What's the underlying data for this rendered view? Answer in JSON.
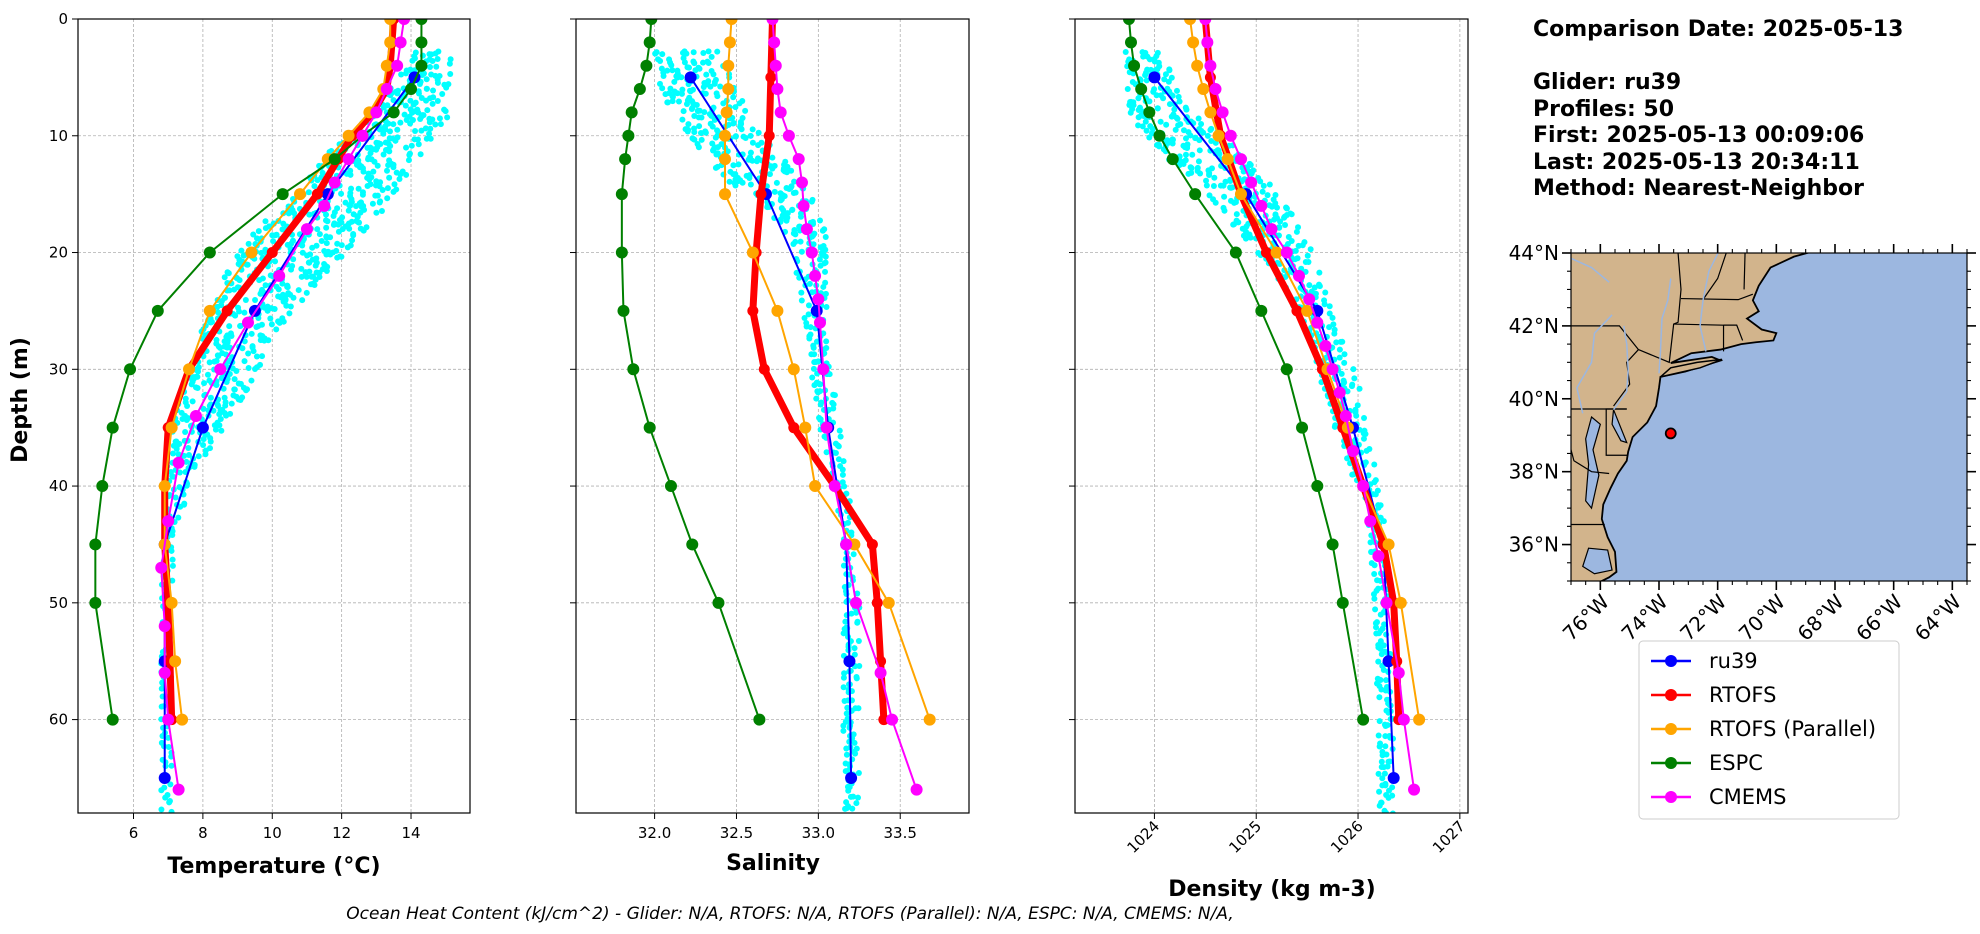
{
  "chart_data": [
    {
      "type": "line",
      "xlabel": "Temperature (°C)",
      "ylabel": "Depth (m)",
      "xlim": [
        4.4,
        15.7
      ],
      "ylim": [
        68,
        0
      ],
      "xticks": [
        6,
        8,
        10,
        12,
        14
      ],
      "xtick_labels": [
        "6",
        "8",
        "10",
        "12",
        "14"
      ],
      "yticks": [
        0,
        10,
        20,
        30,
        40,
        50,
        60
      ],
      "ytick_labels": [
        "0",
        "10",
        "20",
        "30",
        "40",
        "50",
        "60"
      ],
      "grid": true,
      "glider_cloud": {
        "color": "#00ffff",
        "envelope_left": [
          [
            14.0,
            3
          ],
          [
            13.0,
            8
          ],
          [
            12.0,
            10
          ],
          [
            11.0,
            14
          ],
          [
            9.5,
            18
          ],
          [
            8.6,
            22
          ],
          [
            7.8,
            28
          ],
          [
            7.2,
            33
          ],
          [
            6.9,
            40
          ],
          [
            6.8,
            50
          ],
          [
            6.8,
            60
          ],
          [
            6.8,
            68
          ]
        ],
        "envelope_right": [
          [
            15.2,
            3
          ],
          [
            15.2,
            8
          ],
          [
            14.0,
            13
          ],
          [
            12.8,
            18
          ],
          [
            11.5,
            22
          ],
          [
            10.0,
            27
          ],
          [
            9.3,
            32
          ],
          [
            8.4,
            36
          ],
          [
            7.6,
            40
          ],
          [
            7.2,
            45
          ],
          [
            7.1,
            55
          ],
          [
            7.1,
            68
          ]
        ]
      },
      "series": [
        {
          "name": "ru39",
          "color": "#0000ff",
          "lw": 2,
          "y": [
            5,
            15,
            25,
            35,
            45,
            55,
            65
          ],
          "x": [
            14.1,
            11.6,
            9.5,
            8.0,
            6.9,
            6.9,
            6.9
          ]
        },
        {
          "name": "RTOFS",
          "color": "#ff0000",
          "lw": 7,
          "y": [
            0,
            2,
            4,
            6,
            8,
            10,
            12,
            15,
            20,
            25,
            30,
            35,
            40,
            45,
            50,
            55,
            60
          ],
          "x": [
            13.5,
            13.45,
            13.4,
            13.3,
            12.9,
            12.3,
            11.9,
            11.3,
            10.0,
            8.7,
            7.6,
            7.0,
            6.9,
            6.9,
            7.0,
            7.05,
            7.1
          ]
        },
        {
          "name": "RTOFS (Parallel)",
          "color": "#ffa500",
          "lw": 2,
          "y": [
            0,
            2,
            4,
            6,
            8,
            10,
            12,
            15,
            20,
            25,
            30,
            35,
            40,
            45,
            50,
            55,
            60
          ],
          "x": [
            13.4,
            13.4,
            13.3,
            13.2,
            12.8,
            12.2,
            11.6,
            10.8,
            9.4,
            8.2,
            7.6,
            7.1,
            6.9,
            6.9,
            7.1,
            7.2,
            7.4
          ]
        },
        {
          "name": "ESPC",
          "color": "#008000",
          "lw": 2,
          "y": [
            0,
            2,
            4,
            6,
            8,
            10,
            12,
            15,
            20,
            25,
            30,
            35,
            40,
            45,
            50,
            60
          ],
          "x": [
            14.3,
            14.3,
            14.3,
            14.0,
            13.5,
            12.6,
            11.8,
            10.3,
            8.2,
            6.7,
            5.9,
            5.4,
            5.1,
            4.9,
            4.9,
            5.4
          ]
        },
        {
          "name": "CMEMS",
          "color": "#ff00ff",
          "lw": 2,
          "y": [
            0,
            2,
            4,
            6,
            8,
            10,
            12,
            14,
            16,
            18,
            22,
            26,
            30,
            34,
            38,
            43,
            47,
            52,
            56,
            60,
            66
          ],
          "x": [
            13.8,
            13.7,
            13.6,
            13.3,
            13.0,
            12.6,
            12.2,
            11.8,
            11.5,
            11.0,
            10.2,
            9.3,
            8.5,
            7.8,
            7.3,
            7.0,
            6.8,
            6.9,
            6.9,
            7.0,
            7.3
          ]
        }
      ]
    },
    {
      "type": "line",
      "xlabel": "Salinity",
      "ylim": [
        68,
        0
      ],
      "xlim": [
        31.52,
        33.92
      ],
      "xticks": [
        32.0,
        32.5,
        33.0,
        33.5
      ],
      "xtick_labels": [
        "32.0",
        "32.5",
        "33.0",
        "33.5"
      ],
      "grid": true,
      "glider_cloud": {
        "color": "#00ffff",
        "envelope_left": [
          [
            32.0,
            3
          ],
          [
            32.05,
            7
          ],
          [
            32.2,
            10
          ],
          [
            32.45,
            14
          ],
          [
            32.75,
            17
          ],
          [
            32.85,
            20
          ],
          [
            32.9,
            25
          ],
          [
            32.95,
            30
          ],
          [
            33.0,
            35
          ],
          [
            33.1,
            40
          ],
          [
            33.15,
            45
          ],
          [
            33.15,
            55
          ],
          [
            33.15,
            68
          ]
        ],
        "envelope_right": [
          [
            32.4,
            3
          ],
          [
            32.5,
            6
          ],
          [
            32.6,
            9
          ],
          [
            32.8,
            12
          ],
          [
            32.95,
            15
          ],
          [
            33.05,
            18
          ],
          [
            33.05,
            22
          ],
          [
            33.05,
            27
          ],
          [
            33.1,
            32
          ],
          [
            33.15,
            37
          ],
          [
            33.2,
            42
          ],
          [
            33.25,
            50
          ],
          [
            33.25,
            68
          ]
        ]
      },
      "series": [
        {
          "name": "ru39",
          "color": "#0000ff",
          "lw": 2,
          "y": [
            5,
            15,
            25,
            35,
            45,
            55,
            65
          ],
          "x": [
            32.22,
            32.68,
            32.99,
            33.06,
            33.17,
            33.19,
            33.2
          ]
        },
        {
          "name": "RTOFS",
          "color": "#ff0000",
          "lw": 7,
          "y": [
            0,
            5,
            10,
            15,
            20,
            25,
            30,
            35,
            40,
            45,
            50,
            55,
            60
          ],
          "x": [
            32.72,
            32.71,
            32.7,
            32.65,
            32.62,
            32.6,
            32.67,
            32.85,
            33.1,
            33.33,
            33.36,
            33.38,
            33.4
          ]
        },
        {
          "name": "RTOFS (Parallel)",
          "color": "#ffa500",
          "lw": 2,
          "y": [
            0,
            2,
            4,
            6,
            8,
            10,
            12,
            15,
            20,
            25,
            30,
            35,
            40,
            45,
            50,
            60
          ],
          "x": [
            32.47,
            32.46,
            32.45,
            32.45,
            32.44,
            32.43,
            32.43,
            32.43,
            32.6,
            32.75,
            32.85,
            32.92,
            32.98,
            33.22,
            33.43,
            33.68
          ]
        },
        {
          "name": "ESPC",
          "color": "#008000",
          "lw": 2,
          "y": [
            0,
            2,
            4,
            6,
            8,
            10,
            12,
            15,
            20,
            25,
            30,
            35,
            40,
            45,
            50,
            60
          ],
          "x": [
            31.98,
            31.97,
            31.95,
            31.91,
            31.86,
            31.84,
            31.82,
            31.8,
            31.8,
            31.81,
            31.87,
            31.97,
            32.1,
            32.23,
            32.39,
            32.64
          ]
        },
        {
          "name": "CMEMS",
          "color": "#ff00ff",
          "lw": 2,
          "y": [
            0,
            2,
            4,
            6,
            8,
            10,
            12,
            14,
            16,
            18,
            20,
            22,
            24,
            26,
            30,
            35,
            40,
            45,
            50,
            56,
            60,
            66
          ],
          "x": [
            32.72,
            32.73,
            32.74,
            32.75,
            32.77,
            32.82,
            32.88,
            32.9,
            32.91,
            32.93,
            32.96,
            32.98,
            33.0,
            33.01,
            33.03,
            33.05,
            33.1,
            33.17,
            33.23,
            33.38,
            33.45,
            33.6
          ]
        }
      ]
    },
    {
      "type": "line",
      "xlabel": "Density (kg m-3)",
      "ylim": [
        68,
        0
      ],
      "xlim": [
        1023.22,
        1027.08
      ],
      "xticks": [
        1024,
        1025,
        1026,
        1027
      ],
      "xtick_labels": [
        "1024",
        "1025",
        "1026",
        "1027"
      ],
      "grid": true,
      "glider_cloud": {
        "color": "#00ffff",
        "envelope_left": [
          [
            1023.7,
            3
          ],
          [
            1023.75,
            8
          ],
          [
            1024.0,
            11
          ],
          [
            1024.4,
            14
          ],
          [
            1024.8,
            18
          ],
          [
            1025.2,
            22
          ],
          [
            1025.5,
            27
          ],
          [
            1025.7,
            33
          ],
          [
            1025.9,
            38
          ],
          [
            1026.1,
            43
          ],
          [
            1026.15,
            50
          ],
          [
            1026.2,
            60
          ],
          [
            1026.2,
            68
          ]
        ],
        "envelope_right": [
          [
            1024.1,
            3
          ],
          [
            1024.3,
            7
          ],
          [
            1024.7,
            10
          ],
          [
            1025.0,
            13
          ],
          [
            1025.4,
            17
          ],
          [
            1025.6,
            21
          ],
          [
            1025.8,
            26
          ],
          [
            1026.0,
            31
          ],
          [
            1026.1,
            36
          ],
          [
            1026.25,
            42
          ],
          [
            1026.3,
            50
          ],
          [
            1026.35,
            60
          ],
          [
            1026.35,
            68
          ]
        ]
      },
      "series": [
        {
          "name": "ru39",
          "color": "#0000ff",
          "lw": 2,
          "y": [
            5,
            15,
            25,
            35,
            45,
            55,
            65
          ],
          "x": [
            1024.0,
            1024.9,
            1025.6,
            1025.95,
            1026.25,
            1026.3,
            1026.35
          ]
        },
        {
          "name": "RTOFS",
          "color": "#ff0000",
          "lw": 7,
          "y": [
            0,
            5,
            10,
            15,
            20,
            25,
            30,
            35,
            40,
            45,
            50,
            55,
            60
          ],
          "x": [
            1024.5,
            1024.55,
            1024.65,
            1024.85,
            1025.1,
            1025.4,
            1025.65,
            1025.85,
            1026.05,
            1026.25,
            1026.35,
            1026.38,
            1026.4
          ]
        },
        {
          "name": "RTOFS (Parallel)",
          "color": "#ffa500",
          "lw": 2,
          "y": [
            0,
            2,
            4,
            6,
            8,
            10,
            12,
            15,
            20,
            25,
            30,
            35,
            40,
            45,
            50,
            60
          ],
          "x": [
            1024.35,
            1024.38,
            1024.42,
            1024.48,
            1024.55,
            1024.63,
            1024.72,
            1024.85,
            1025.2,
            1025.5,
            1025.7,
            1025.9,
            1026.05,
            1026.3,
            1026.42,
            1026.6
          ]
        },
        {
          "name": "ESPC",
          "color": "#008000",
          "lw": 2,
          "y": [
            0,
            2,
            4,
            6,
            8,
            10,
            12,
            15,
            20,
            25,
            30,
            35,
            40,
            45,
            50,
            60
          ],
          "x": [
            1023.75,
            1023.77,
            1023.8,
            1023.87,
            1023.95,
            1024.05,
            1024.18,
            1024.4,
            1024.8,
            1025.05,
            1025.3,
            1025.45,
            1025.6,
            1025.75,
            1025.85,
            1026.05
          ]
        },
        {
          "name": "CMEMS",
          "color": "#ff00ff",
          "lw": 2,
          "y": [
            0,
            2,
            4,
            6,
            8,
            10,
            12,
            14,
            16,
            18,
            20,
            22,
            24,
            26,
            28,
            30,
            32,
            34,
            37,
            40,
            43,
            46,
            50,
            56,
            60,
            66
          ],
          "x": [
            1024.5,
            1024.52,
            1024.55,
            1024.6,
            1024.67,
            1024.75,
            1024.85,
            1024.95,
            1025.05,
            1025.15,
            1025.3,
            1025.42,
            1025.52,
            1025.6,
            1025.68,
            1025.75,
            1025.82,
            1025.88,
            1025.95,
            1026.05,
            1026.12,
            1026.2,
            1026.28,
            1026.4,
            1026.45,
            1026.55
          ]
        }
      ]
    }
  ],
  "info": {
    "date": "Comparison Date: 2025-05-13",
    "glider": "Glider: ru39",
    "profiles": "Profiles: 50",
    "first": "First: 2025-05-13 00:09:06",
    "last": "Last: 2025-05-13 20:34:11",
    "method": "Method: Nearest-Neighbor"
  },
  "map": {
    "land_color": "#d2b48c",
    "ocean_color": "#9cb7e0",
    "lon_range": [
      -77,
      -63.5
    ],
    "lat_range": [
      35,
      44
    ],
    "lat_labels": [
      "44°N",
      "42°N",
      "40°N",
      "38°N",
      "36°N"
    ],
    "lat_values": [
      44,
      42,
      40,
      38,
      36
    ],
    "lon_labels": [
      "76°W",
      "74°W",
      "72°W",
      "70°W",
      "68°W",
      "66°W",
      "64°W"
    ],
    "lon_values": [
      -76,
      -74,
      -72,
      -70,
      -68,
      -66,
      -64
    ],
    "glider_location": {
      "lon": -73.6,
      "lat": 39.05
    }
  },
  "legend": [
    {
      "name": "ru39",
      "color": "#0000ff"
    },
    {
      "name": "RTOFS",
      "color": "#ff0000"
    },
    {
      "name": "RTOFS (Parallel)",
      "color": "#ffa500"
    },
    {
      "name": "ESPC",
      "color": "#008000"
    },
    {
      "name": "CMEMS",
      "color": "#ff00ff"
    }
  ],
  "footer": "Ocean Heat Content (kJ/cm^2) - Glider: N/A,  RTOFS: N/A,  RTOFS (Parallel): N/A,  ESPC: N/A,  CMEMS: N/A,"
}
